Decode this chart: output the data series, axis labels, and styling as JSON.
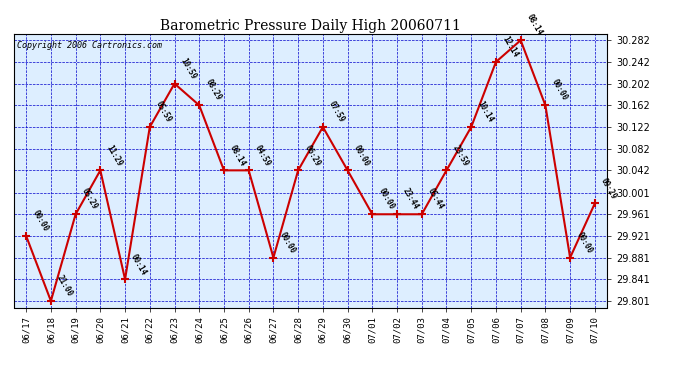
{
  "title": "Barometric Pressure Daily High 20060711",
  "copyright": "Copyright 2006 Cartronics.com",
  "background_color": "#ffffff",
  "plot_bg_color": "#ddeeff",
  "grid_color": "#0000cc",
  "line_color": "#cc0000",
  "marker_color": "#cc0000",
  "text_color": "#000000",
  "ytick_values": [
    29.801,
    29.841,
    29.881,
    29.921,
    29.961,
    30.001,
    30.042,
    30.082,
    30.122,
    30.162,
    30.202,
    30.242,
    30.282
  ],
  "dates": [
    "06/17",
    "06/18",
    "06/19",
    "06/20",
    "06/21",
    "06/22",
    "06/23",
    "06/24",
    "06/25",
    "06/26",
    "06/27",
    "06/28",
    "06/29",
    "06/30",
    "07/01",
    "07/02",
    "07/03",
    "07/04",
    "07/05",
    "07/06",
    "07/07",
    "07/08",
    "07/09",
    "07/10"
  ],
  "values": [
    29.921,
    29.801,
    29.961,
    30.042,
    29.841,
    30.122,
    30.202,
    30.162,
    30.042,
    30.042,
    29.881,
    30.042,
    30.122,
    30.042,
    29.961,
    29.961,
    29.961,
    30.042,
    30.122,
    30.242,
    30.282,
    30.162,
    29.881,
    29.981
  ],
  "point_labels": [
    "00:00",
    "21:00",
    "05:29",
    "11:29",
    "00:14",
    "05:59",
    "10:59",
    "08:29",
    "08:14",
    "04:59",
    "00:00",
    "06:29",
    "07:59",
    "00:00",
    "00:00",
    "23:44",
    "05:44",
    "23:59",
    "10:14",
    "12:14",
    "08:14",
    "00:00",
    "00:00",
    "09:29"
  ]
}
